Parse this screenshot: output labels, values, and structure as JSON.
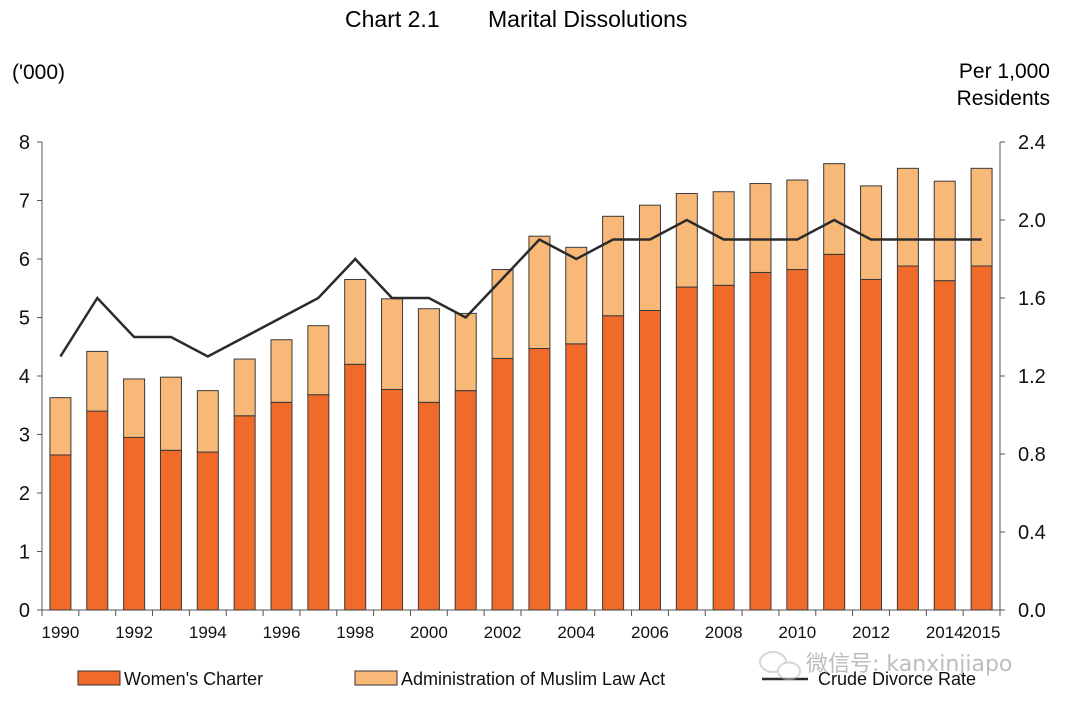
{
  "chart_data": {
    "type": "bar",
    "stacked": true,
    "title_prefix": "Chart 2.1",
    "title": "Marital Dissolutions",
    "ylabel_left": "('000)",
    "ylabel_right_line1": "Per 1,000",
    "ylabel_right_line2": "Residents",
    "ylim_left": [
      0,
      8
    ],
    "yticks_left": [
      "0",
      "1",
      "2",
      "3",
      "4",
      "5",
      "6",
      "7",
      "8"
    ],
    "ylim_right": [
      0,
      2.4
    ],
    "yticks_right": [
      "0.0",
      "0.4",
      "0.8",
      "1.2",
      "1.6",
      "2.0",
      "2.4"
    ],
    "categories": [
      "1990",
      "1991",
      "1992",
      "1993",
      "1994",
      "1995",
      "1996",
      "1997",
      "1998",
      "1999",
      "2000",
      "2001",
      "2002",
      "2003",
      "2004",
      "2005",
      "2006",
      "2007",
      "2008",
      "2009",
      "2010",
      "2011",
      "2012",
      "2013",
      "2014",
      "2015"
    ],
    "xtick_labels": [
      "1990",
      "",
      "1992",
      "",
      "1994",
      "",
      "1996",
      "",
      "1998",
      "",
      "2000",
      "",
      "2002",
      "",
      "2004",
      "",
      "2006",
      "",
      "2008",
      "",
      "2010",
      "",
      "2012",
      "",
      "2014",
      "2015"
    ],
    "series": [
      {
        "name": "Women's Charter",
        "color": "#f06a2a",
        "values": [
          2.65,
          3.4,
          2.95,
          2.73,
          2.7,
          3.32,
          3.55,
          3.68,
          4.2,
          3.77,
          3.55,
          3.75,
          4.3,
          4.47,
          4.55,
          5.03,
          5.12,
          5.52,
          5.55,
          5.77,
          5.82,
          6.08,
          5.65,
          5.88,
          5.63,
          5.88
        ]
      },
      {
        "name": "Administration of Muslim Law Act",
        "color": "#f8b877",
        "values": [
          0.98,
          1.02,
          1.0,
          1.25,
          1.05,
          0.97,
          1.07,
          1.18,
          1.45,
          1.55,
          1.6,
          1.32,
          1.52,
          1.92,
          1.65,
          1.7,
          1.8,
          1.6,
          1.6,
          1.52,
          1.53,
          1.55,
          1.6,
          1.67,
          1.7,
          1.67
        ]
      }
    ],
    "line": {
      "name": "Crude Divorce Rate",
      "axis": "right",
      "color": "#2b2b2b",
      "values": [
        1.3,
        1.6,
        1.4,
        1.4,
        1.3,
        1.4,
        1.5,
        1.6,
        1.8,
        1.6,
        1.6,
        1.5,
        1.7,
        1.9,
        1.8,
        1.9,
        1.9,
        2.0,
        1.9,
        1.9,
        1.9,
        2.0,
        1.9,
        1.9,
        1.9,
        1.9
      ]
    },
    "legend": [
      "Women's Charter",
      "Administration of Muslim Law Act",
      "Crude Divorce Rate"
    ],
    "watermark": "微信号: kanxinjiapo"
  }
}
